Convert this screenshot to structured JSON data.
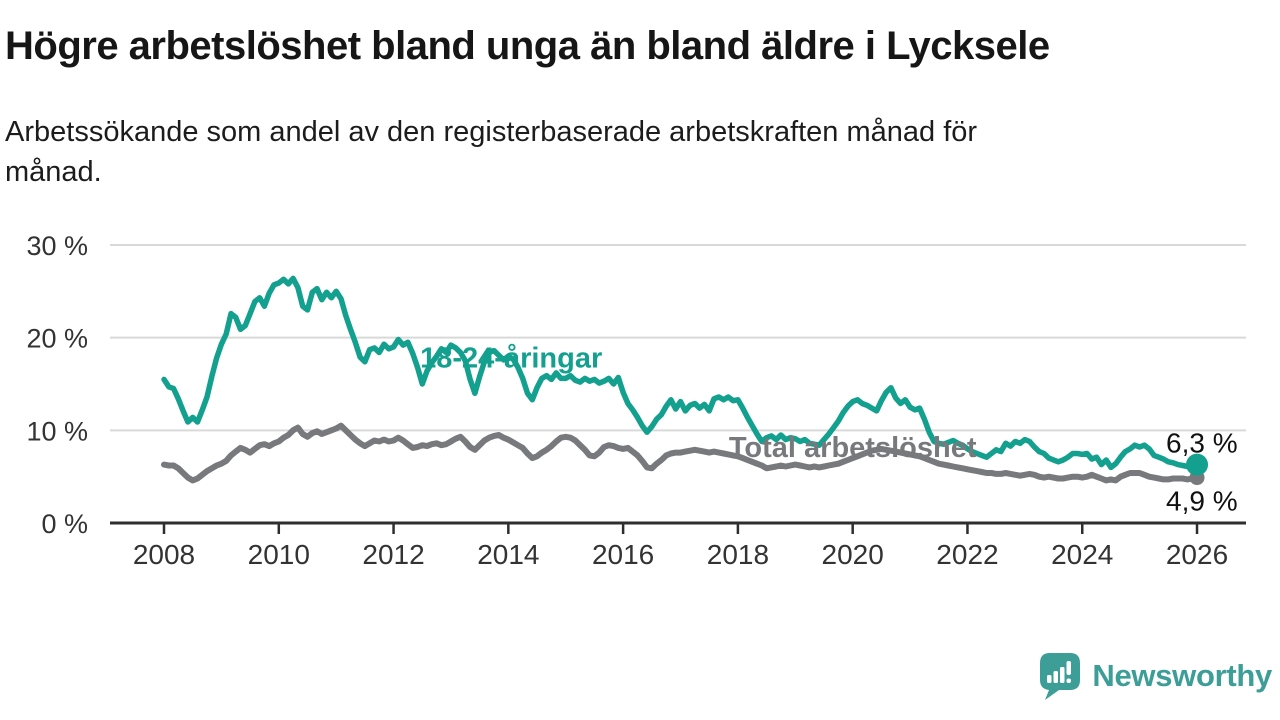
{
  "header": {
    "title": "Högre arbetslöshet bland unga än bland äldre i Lycksele",
    "subtitle_lines": [
      "Arbetssökande som andel av den registerbaserade arbetskraften månad för",
      "månad."
    ]
  },
  "branding": {
    "name": "Newsworthy",
    "logo_icon": "speech-bubble-bar-chart"
  },
  "colors": {
    "teal": "#13a08e",
    "gray": "#78797d",
    "grid": "#d9d9d9",
    "axis": "#2e2e2e",
    "axis_text": "#333333",
    "end_label": "#111111",
    "logo": "#3c9e97"
  },
  "chart_data": {
    "type": "line",
    "title": "Högre arbetslöshet bland unga än bland äldre i Lycksele",
    "xlabel": "",
    "ylabel": "",
    "grid": "horizontal",
    "legend_position": "inline-labels",
    "x_axis": {
      "ticks": [
        2008,
        2010,
        2012,
        2014,
        2016,
        2018,
        2020,
        2022,
        2024,
        2026
      ],
      "range": [
        2007.1,
        2026.9
      ]
    },
    "y_axis": {
      "ticks": [
        0,
        10,
        20,
        30
      ],
      "tick_suffix": " %",
      "range": [
        0,
        30
      ]
    },
    "series": [
      {
        "id": "total",
        "name": "Total arbetslöshet",
        "color": "#78797d",
        "width": 6,
        "dot_radius": 7.5,
        "start_year": 2008,
        "points_per_year": 12,
        "end_label": "4,9 %",
        "end_label_offset": [
          -31,
          33
        ],
        "label_at": {
          "year": 2020.0,
          "value": 7.1
        },
        "values": [
          6.3,
          6.2,
          6.2,
          5.9,
          5.4,
          4.9,
          4.6,
          4.8,
          5.2,
          5.6,
          5.9,
          6.2,
          6.4,
          6.7,
          7.3,
          7.7,
          8.1,
          7.9,
          7.6,
          8.0,
          8.4,
          8.5,
          8.3,
          8.6,
          8.8,
          9.2,
          9.5,
          10.0,
          10.3,
          9.6,
          9.3,
          9.7,
          9.9,
          9.6,
          9.8,
          10.0,
          10.2,
          10.5,
          10.0,
          9.5,
          9.0,
          8.6,
          8.3,
          8.6,
          8.9,
          8.8,
          9.0,
          8.8,
          8.9,
          9.2,
          8.9,
          8.5,
          8.1,
          8.2,
          8.4,
          8.3,
          8.5,
          8.6,
          8.4,
          8.5,
          8.8,
          9.1,
          9.3,
          8.8,
          8.2,
          7.9,
          8.4,
          8.9,
          9.2,
          9.4,
          9.5,
          9.2,
          9.0,
          8.7,
          8.4,
          8.1,
          7.5,
          7.0,
          7.2,
          7.6,
          7.9,
          8.3,
          8.8,
          9.2,
          9.3,
          9.2,
          8.9,
          8.4,
          7.9,
          7.3,
          7.2,
          7.6,
          8.2,
          8.4,
          8.3,
          8.1,
          8.0,
          8.1,
          7.7,
          7.3,
          6.7,
          6.0,
          5.9,
          6.4,
          6.8,
          7.3,
          7.5,
          7.6,
          7.6,
          7.7,
          7.8,
          7.9,
          7.8,
          7.7,
          7.6,
          7.7,
          7.6,
          7.5,
          7.4,
          7.3,
          7.2,
          7.0,
          6.8,
          6.6,
          6.4,
          6.2,
          5.9,
          6.0,
          6.1,
          6.2,
          6.1,
          6.2,
          6.3,
          6.2,
          6.1,
          6.0,
          6.1,
          6.0,
          6.1,
          6.2,
          6.3,
          6.4,
          6.6,
          6.8,
          7.0,
          7.2,
          7.4,
          7.6,
          7.8,
          7.9,
          8.0,
          7.9,
          7.8,
          7.7,
          7.6,
          7.5,
          7.4,
          7.3,
          7.2,
          7.0,
          6.8,
          6.6,
          6.4,
          6.3,
          6.2,
          6.1,
          6.0,
          5.9,
          5.8,
          5.7,
          5.6,
          5.5,
          5.4,
          5.4,
          5.3,
          5.3,
          5.4,
          5.3,
          5.2,
          5.1,
          5.2,
          5.3,
          5.2,
          5.0,
          4.9,
          5.0,
          4.9,
          4.8,
          4.8,
          4.9,
          5.0,
          5.0,
          4.9,
          5.0,
          5.2,
          5.0,
          4.8,
          4.6,
          4.7,
          4.6,
          5.0,
          5.2,
          5.4,
          5.4,
          5.4,
          5.2,
          5.0,
          4.9,
          4.8,
          4.7,
          4.7,
          4.8,
          4.8,
          4.8,
          4.7,
          4.8,
          4.9
        ]
      },
      {
        "id": "young",
        "name": "18-24-åringar",
        "color": "#13a08e",
        "width": 5.5,
        "dot_radius": 11,
        "start_year": 2008,
        "points_per_year": 12,
        "end_label": "6,3 %",
        "end_label_offset": [
          -31,
          -12
        ],
        "label_at": {
          "year": 2014.05,
          "value": 16.8
        },
        "values": [
          15.5,
          14.7,
          14.5,
          13.4,
          12.1,
          10.9,
          11.4,
          10.9,
          12.2,
          13.6,
          15.8,
          17.8,
          19.3,
          20.4,
          22.6,
          22.2,
          20.9,
          21.3,
          22.6,
          23.9,
          24.3,
          23.4,
          24.8,
          25.7,
          25.9,
          26.3,
          25.8,
          26.4,
          25.4,
          23.4,
          23.0,
          24.9,
          25.3,
          24.1,
          24.9,
          24.3,
          25.0,
          24.2,
          22.4,
          20.9,
          19.5,
          17.9,
          17.4,
          18.7,
          18.9,
          18.4,
          19.3,
          18.8,
          19.0,
          19.8,
          19.2,
          19.5,
          18.3,
          16.8,
          15.0,
          16.4,
          17.3,
          18.0,
          18.8,
          18.4,
          19.2,
          18.9,
          18.4,
          17.5,
          15.5,
          14.0,
          15.8,
          17.4,
          18.4,
          18.6,
          18.1,
          17.6,
          18.0,
          17.7,
          16.8,
          15.6,
          14.0,
          13.3,
          14.6,
          15.6,
          15.9,
          15.5,
          16.2,
          15.6,
          15.6,
          15.9,
          15.4,
          15.2,
          15.6,
          15.3,
          15.5,
          15.1,
          15.3,
          15.6,
          15.0,
          15.7,
          14.1,
          12.9,
          12.2,
          11.4,
          10.5,
          9.8,
          10.4,
          11.2,
          11.7,
          12.6,
          13.3,
          12.3,
          13.1,
          12.1,
          12.7,
          12.9,
          12.4,
          12.8,
          12.1,
          13.4,
          13.6,
          13.3,
          13.6,
          13.2,
          13.3,
          12.4,
          11.4,
          10.5,
          9.6,
          8.8,
          9.2,
          9.4,
          9.0,
          9.5,
          9.0,
          9.2,
          9.1,
          8.8,
          9.0,
          8.6,
          8.5,
          8.4,
          9.0,
          9.6,
          10.3,
          11.0,
          11.9,
          12.6,
          13.1,
          13.3,
          12.9,
          12.7,
          12.4,
          12.1,
          13.2,
          14.1,
          14.6,
          13.5,
          12.9,
          13.3,
          12.5,
          12.2,
          12.4,
          11.2,
          9.8,
          8.8,
          8.6,
          8.5,
          8.7,
          8.9,
          8.6,
          8.4,
          8.0,
          7.7,
          7.5,
          7.3,
          7.1,
          7.5,
          7.9,
          7.7,
          8.6,
          8.3,
          8.8,
          8.6,
          9.0,
          8.8,
          8.2,
          7.7,
          7.5,
          7.0,
          6.8,
          6.6,
          6.8,
          7.1,
          7.5,
          7.5,
          7.4,
          7.5,
          6.9,
          7.1,
          6.3,
          6.8,
          6.0,
          6.4,
          7.1,
          7.7,
          8.0,
          8.4,
          8.2,
          8.4,
          8.0,
          7.3,
          7.1,
          6.9,
          6.6,
          6.5,
          6.3,
          6.2,
          6.1,
          6.2,
          6.3
        ]
      }
    ]
  }
}
